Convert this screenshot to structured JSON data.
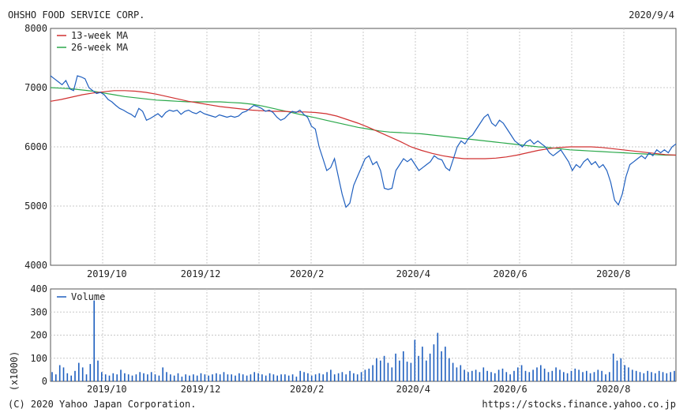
{
  "header": {
    "company": "OHSHO FOOD SERVICE CORP.",
    "date": "2020/9/4"
  },
  "footer": {
    "copyright": "(C) 2020 Yahoo Japan Corporation.",
    "source": "https://stocks.finance.yahoo.co.jp"
  },
  "colors": {
    "price": "#1f5fbf",
    "ma13": "#d03030",
    "ma26": "#2aa84a",
    "volume": "#1f5fbf",
    "grid": "#c8c8c8",
    "frame": "#555555"
  },
  "chart_data": [
    {
      "type": "line",
      "x_labels": [
        "2019/10",
        "2019/12",
        "2020/2",
        "2020/4",
        "2020/6",
        "2020/8"
      ],
      "x_label_positions": [
        0.09,
        0.24,
        0.41,
        0.58,
        0.735,
        0.9
      ],
      "yticks": [
        "8000",
        "7000",
        "6000",
        "5000",
        "4000"
      ],
      "ylim": [
        4000,
        8000
      ],
      "legend": [
        "13-week MA",
        "26-week MA"
      ],
      "legend_position": "top-left",
      "grid": true,
      "series": [
        {
          "name": "",
          "role": "price",
          "values": [
            7200,
            7150,
            7100,
            7050,
            7120,
            6980,
            6950,
            7200,
            7180,
            7150,
            7000,
            6950,
            6900,
            6920,
            6880,
            6800,
            6760,
            6700,
            6650,
            6620,
            6580,
            6550,
            6500,
            6650,
            6600,
            6450,
            6480,
            6520,
            6560,
            6500,
            6580,
            6620,
            6600,
            6620,
            6550,
            6600,
            6620,
            6580,
            6560,
            6600,
            6560,
            6540,
            6520,
            6500,
            6540,
            6520,
            6500,
            6520,
            6500,
            6520,
            6580,
            6600,
            6650,
            6700,
            6680,
            6650,
            6600,
            6620,
            6580,
            6500,
            6450,
            6480,
            6550,
            6600,
            6580,
            6620,
            6550,
            6500,
            6350,
            6300,
            6000,
            5800,
            5600,
            5650,
            5800,
            5500,
            5200,
            4980,
            5050,
            5350,
            5500,
            5650,
            5800,
            5850,
            5700,
            5750,
            5600,
            5300,
            5280,
            5300,
            5600,
            5700,
            5800,
            5750,
            5800,
            5700,
            5600,
            5650,
            5700,
            5750,
            5850,
            5800,
            5780,
            5650,
            5600,
            5800,
            6000,
            6100,
            6050,
            6150,
            6200,
            6300,
            6400,
            6500,
            6550,
            6400,
            6350,
            6450,
            6400,
            6300,
            6200,
            6100,
            6050,
            6000,
            6080,
            6120,
            6050,
            6100,
            6050,
            6000,
            5900,
            5850,
            5900,
            5950,
            5850,
            5750,
            5600,
            5700,
            5650,
            5750,
            5800,
            5700,
            5750,
            5650,
            5700,
            5600,
            5400,
            5100,
            5020,
            5200,
            5500,
            5700,
            5750,
            5800,
            5850,
            5800,
            5900,
            5850,
            5950,
            5900,
            5950,
            5900,
            6000,
            6050
          ]
        },
        {
          "name": "13-week MA",
          "role": "ma13",
          "values": [
            6770,
            6800,
            6840,
            6880,
            6910,
            6930,
            6950,
            6950,
            6940,
            6920,
            6890,
            6850,
            6810,
            6770,
            6740,
            6710,
            6680,
            6660,
            6640,
            6620,
            6610,
            6600,
            6600,
            6590,
            6590,
            6580,
            6560,
            6520,
            6460,
            6400,
            6330,
            6250,
            6170,
            6090,
            6000,
            5940,
            5890,
            5850,
            5820,
            5800,
            5800,
            5800,
            5810,
            5830,
            5860,
            5900,
            5940,
            5970,
            5990,
            6000,
            6000,
            6000,
            5990,
            5970,
            5950,
            5930,
            5910,
            5890,
            5870,
            5860
          ]
        },
        {
          "name": "26-week MA",
          "role": "ma26",
          "values": [
            7000,
            6990,
            6980,
            6960,
            6940,
            6910,
            6880,
            6850,
            6830,
            6810,
            6790,
            6780,
            6770,
            6760,
            6760,
            6760,
            6760,
            6750,
            6740,
            6720,
            6690,
            6650,
            6610,
            6570,
            6530,
            6490,
            6450,
            6410,
            6370,
            6330,
            6300,
            6270,
            6250,
            6240,
            6230,
            6220,
            6200,
            6180,
            6160,
            6140,
            6120,
            6100,
            6080,
            6060,
            6040,
            6020,
            6000,
            5990,
            5970,
            5950,
            5940,
            5930,
            5920,
            5910,
            5900,
            5890,
            5880,
            5870,
            5860,
            5860
          ]
        }
      ]
    },
    {
      "type": "bar",
      "ylim": [
        0,
        400
      ],
      "yticks": [
        "400",
        "300",
        "200",
        "100",
        "0"
      ],
      "yunit": "(x1000)",
      "x_labels": [
        "2019/10",
        "2019/12",
        "2020/2",
        "2020/4",
        "2020/6",
        "2020/8"
      ],
      "x_label_positions": [
        0.09,
        0.24,
        0.41,
        0.58,
        0.735,
        0.9
      ],
      "legend": [
        "Volume"
      ],
      "legend_position": "top-left",
      "grid": true,
      "series": [
        {
          "name": "Volume",
          "values": [
            40,
            30,
            70,
            60,
            35,
            25,
            45,
            80,
            60,
            30,
            75,
            350,
            90,
            40,
            30,
            25,
            35,
            30,
            50,
            35,
            30,
            25,
            30,
            40,
            35,
            30,
            40,
            30,
            25,
            60,
            40,
            30,
            25,
            35,
            20,
            30,
            25,
            30,
            25,
            35,
            30,
            25,
            30,
            35,
            30,
            40,
            30,
            30,
            25,
            35,
            30,
            25,
            30,
            40,
            35,
            30,
            25,
            35,
            30,
            25,
            30,
            30,
            25,
            30,
            20,
            45,
            40,
            35,
            25,
            30,
            35,
            30,
            40,
            50,
            30,
            35,
            40,
            30,
            45,
            35,
            30,
            40,
            50,
            55,
            70,
            100,
            90,
            110,
            80,
            60,
            120,
            90,
            130,
            85,
            80,
            180,
            110,
            150,
            90,
            120,
            160,
            210,
            130,
            150,
            100,
            80,
            60,
            70,
            50,
            40,
            45,
            50,
            40,
            60,
            45,
            40,
            35,
            50,
            55,
            40,
            30,
            45,
            60,
            70,
            45,
            40,
            50,
            60,
            70,
            55,
            40,
            45,
            60,
            50,
            40,
            35,
            45,
            55,
            50,
            40,
            45,
            35,
            40,
            50,
            45,
            30,
            40,
            120,
            90,
            100,
            70,
            60,
            50,
            45,
            40,
            35,
            45,
            40,
            35,
            45,
            40,
            35,
            40,
            45
          ]
        }
      ]
    }
  ]
}
